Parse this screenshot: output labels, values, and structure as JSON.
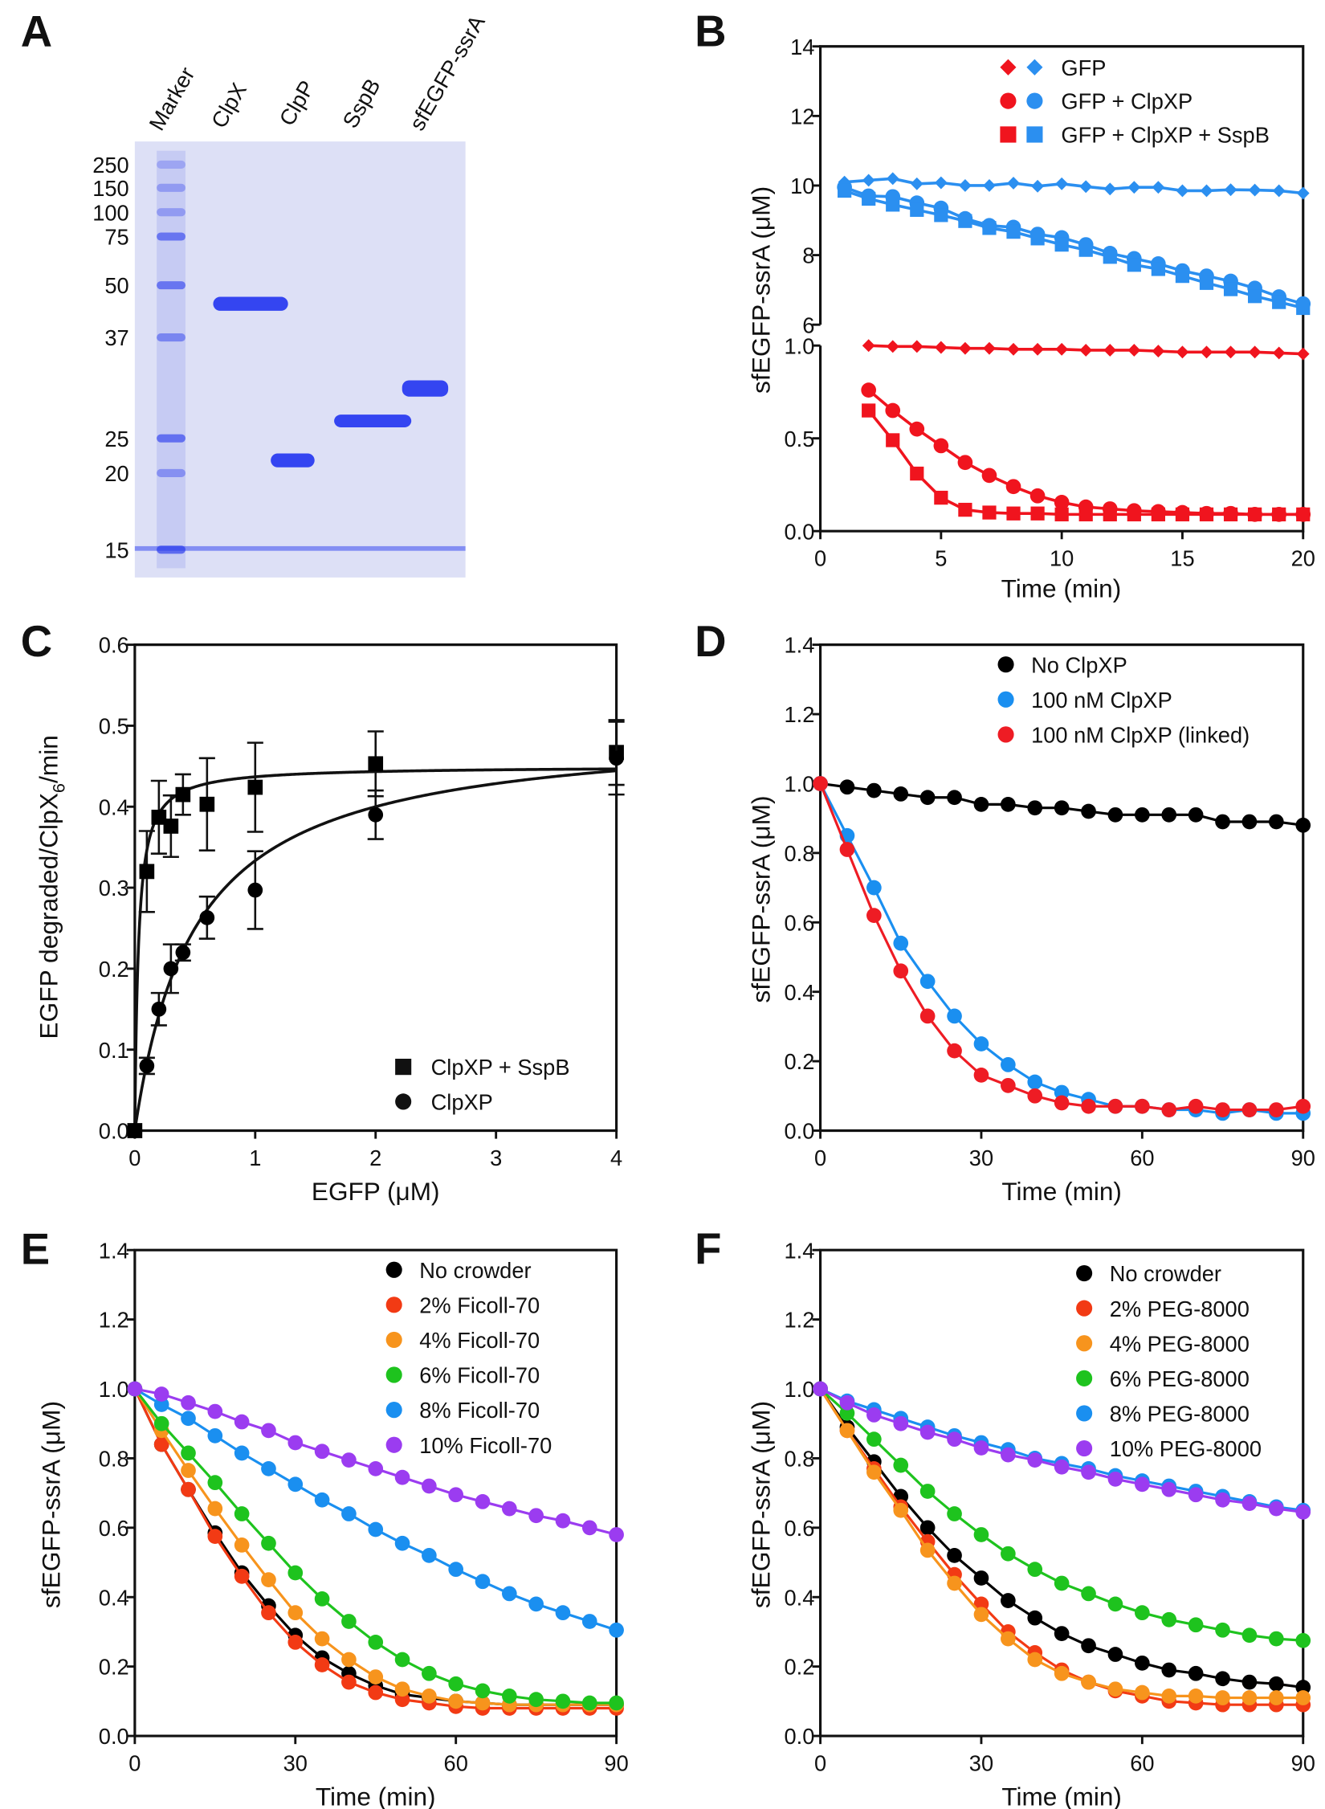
{
  "chart_data": [
    {
      "panel": "A",
      "type": "image",
      "lanes": [
        "Marker",
        "ClpX",
        "ClpP",
        "SspB",
        "sfEGFP-ssrA"
      ],
      "marker_labels": [
        "250",
        "150",
        "100",
        "75",
        "50",
        "37",
        "25",
        "20",
        "15"
      ],
      "colors": {
        "gel": "#dde0f6",
        "band": "#2a3cf0"
      }
    },
    {
      "panel": "B",
      "type": "line",
      "xlabel": "Time (min)",
      "ylabel": "sfEGFP-ssrA (μM)",
      "xlim": [
        0,
        20
      ],
      "ylim_upper": [
        6,
        14
      ],
      "ylim_lower": [
        0,
        1
      ],
      "xticks": [
        "0",
        "5",
        "10",
        "15",
        "20"
      ],
      "yticks_upper": [
        "6",
        "8",
        "10",
        "12",
        "14"
      ],
      "yticks_lower": [
        "0.0",
        "0.5",
        "1.0"
      ],
      "legend": [
        {
          "label": "GFP",
          "marker": "diamond"
        },
        {
          "label": "GFP + ClpXP",
          "marker": "circle"
        },
        {
          "label": "GFP + ClpXP + SspB",
          "marker": "square"
        }
      ],
      "series": [
        {
          "legend": 0,
          "color": "#2b8ff0",
          "segment": "upper",
          "marker": "diamond",
          "x": [
            1,
            2,
            3,
            4,
            5,
            6,
            7,
            8,
            9,
            10,
            11,
            12,
            13,
            14,
            15,
            16,
            17,
            18,
            19,
            20
          ],
          "y": [
            10.1,
            10.15,
            10.2,
            10.05,
            10.08,
            10.0,
            10.0,
            10.07,
            9.98,
            10.05,
            9.97,
            9.9,
            9.95,
            9.95,
            9.85,
            9.85,
            9.88,
            9.87,
            9.85,
            9.78
          ]
        },
        {
          "legend": 1,
          "color": "#2b8ff0",
          "segment": "upper",
          "marker": "circle",
          "x": [
            1,
            2,
            3,
            4,
            5,
            6,
            7,
            8,
            9,
            10,
            11,
            12,
            13,
            14,
            15,
            16,
            17,
            18,
            19,
            20
          ],
          "y": [
            9.95,
            9.7,
            9.68,
            9.5,
            9.35,
            9.05,
            8.85,
            8.8,
            8.6,
            8.5,
            8.3,
            8.05,
            7.9,
            7.75,
            7.55,
            7.4,
            7.25,
            7.05,
            6.8,
            6.6
          ]
        },
        {
          "legend": 2,
          "color": "#2b8ff0",
          "segment": "upper",
          "marker": "square",
          "x": [
            1,
            2,
            3,
            4,
            5,
            6,
            7,
            8,
            9,
            10,
            11,
            12,
            13,
            14,
            15,
            16,
            17,
            18,
            19,
            20
          ],
          "y": [
            9.85,
            9.62,
            9.45,
            9.3,
            9.15,
            8.98,
            8.78,
            8.67,
            8.48,
            8.3,
            8.15,
            7.95,
            7.72,
            7.6,
            7.4,
            7.2,
            7.02,
            6.82,
            6.65,
            6.48
          ]
        },
        {
          "legend": 0,
          "color": "#f0141e",
          "segment": "lower",
          "marker": "diamond",
          "x": [
            2,
            3,
            4,
            5,
            6,
            7,
            8,
            9,
            10,
            11,
            12,
            13,
            14,
            15,
            16,
            17,
            18,
            19,
            20
          ],
          "y": [
            1.0,
            0.995,
            0.995,
            0.99,
            0.985,
            0.985,
            0.98,
            0.98,
            0.98,
            0.975,
            0.975,
            0.975,
            0.97,
            0.965,
            0.965,
            0.965,
            0.965,
            0.96,
            0.955
          ]
        },
        {
          "legend": 1,
          "color": "#f0141e",
          "segment": "lower",
          "marker": "circle",
          "x": [
            2,
            3,
            4,
            5,
            6,
            7,
            8,
            9,
            10,
            11,
            12,
            13,
            14,
            15,
            16,
            17,
            18,
            19,
            20
          ],
          "y": [
            0.76,
            0.65,
            0.55,
            0.46,
            0.37,
            0.3,
            0.24,
            0.19,
            0.155,
            0.13,
            0.12,
            0.11,
            0.105,
            0.1,
            0.095,
            0.095,
            0.09,
            0.09,
            0.09
          ]
        },
        {
          "legend": 2,
          "color": "#f0141e",
          "segment": "lower",
          "marker": "square",
          "x": [
            2,
            3,
            4,
            5,
            6,
            7,
            8,
            9,
            10,
            11,
            12,
            13,
            14,
            15,
            16,
            17,
            18,
            19,
            20
          ],
          "y": [
            0.65,
            0.49,
            0.31,
            0.18,
            0.115,
            0.1,
            0.095,
            0.095,
            0.09,
            0.09,
            0.09,
            0.09,
            0.09,
            0.09,
            0.09,
            0.09,
            0.09,
            0.09,
            0.09
          ]
        }
      ]
    },
    {
      "panel": "C",
      "type": "scatter",
      "xlabel": "EGFP (μM)",
      "ylabel": "EGFP degraded/ClpX6/min",
      "ylabel_parts": [
        "EGFP degraded/ClpX",
        "6",
        "/min"
      ],
      "xlim": [
        0,
        4
      ],
      "ylim": [
        0,
        0.6
      ],
      "xticks": [
        "0",
        "1",
        "2",
        "3",
        "4"
      ],
      "yticks": [
        "0.0",
        "0.1",
        "0.2",
        "0.3",
        "0.4",
        "0.5",
        "0.6"
      ],
      "legend_position": "bottom-right",
      "series": [
        {
          "name": "ClpXP + SspB",
          "marker": "square",
          "color": "#000000",
          "x": [
            0,
            0.1,
            0.2,
            0.3,
            0.4,
            0.6,
            1,
            2,
            4
          ],
          "y": [
            0,
            0.32,
            0.387,
            0.376,
            0.415,
            0.403,
            0.424,
            0.453,
            0.467
          ],
          "error": [
            0,
            0.05,
            0.045,
            0.038,
            0.025,
            0.057,
            0.055,
            0.04,
            0.04
          ],
          "fit": "hyperbolic"
        },
        {
          "name": "ClpXP",
          "marker": "circle",
          "color": "#000000",
          "x": [
            0,
            0.1,
            0.2,
            0.3,
            0.4,
            0.6,
            1,
            2,
            4
          ],
          "y": [
            0,
            0.08,
            0.15,
            0.2,
            0.22,
            0.263,
            0.297,
            0.39,
            0.46
          ],
          "error": [
            0,
            0.01,
            0.02,
            0.03,
            0.01,
            0.026,
            0.048,
            0.03,
            0.045
          ],
          "fit": "hyperbolic"
        }
      ]
    },
    {
      "panel": "D",
      "type": "line",
      "xlabel": "Time (min)",
      "ylabel": "sfEGFP-ssrA (μM)",
      "xlim": [
        0,
        90
      ],
      "ylim": [
        0,
        1.4
      ],
      "xticks": [
        "0",
        "30",
        "60",
        "90"
      ],
      "yticks": [
        "0.0",
        "0.2",
        "0.4",
        "0.6",
        "0.8",
        "1.0",
        "1.2",
        "1.4"
      ],
      "legend_position": "top-right",
      "x": [
        0,
        5,
        10,
        15,
        20,
        25,
        30,
        35,
        40,
        45,
        50,
        55,
        60,
        65,
        70,
        75,
        80,
        85,
        90
      ],
      "series": [
        {
          "name": "No ClpXP",
          "color": "#000000",
          "y": [
            1.0,
            0.99,
            0.98,
            0.97,
            0.96,
            0.96,
            0.94,
            0.94,
            0.93,
            0.93,
            0.92,
            0.91,
            0.91,
            0.91,
            0.91,
            0.89,
            0.89,
            0.89,
            0.88
          ]
        },
        {
          "name": "100 nM ClpXP",
          "color": "#1a8ff0",
          "y": [
            1.0,
            0.85,
            0.7,
            0.54,
            0.43,
            0.33,
            0.25,
            0.19,
            0.14,
            0.11,
            0.09,
            0.07,
            0.07,
            0.06,
            0.06,
            0.05,
            0.06,
            0.05,
            0.05
          ]
        },
        {
          "name": "100 nM ClpXP (linked)",
          "color": "#ee1c24",
          "y": [
            1.0,
            0.81,
            0.62,
            0.46,
            0.33,
            0.23,
            0.16,
            0.13,
            0.1,
            0.08,
            0.07,
            0.07,
            0.07,
            0.06,
            0.07,
            0.06,
            0.06,
            0.06,
            0.07
          ]
        }
      ]
    },
    {
      "panel": "E",
      "type": "line",
      "xlabel": "Time (min)",
      "ylabel": "sfEGFP-ssrA (μM)",
      "xlim": [
        0,
        90
      ],
      "ylim": [
        0,
        1.4
      ],
      "xticks": [
        "0",
        "30",
        "60",
        "90"
      ],
      "yticks": [
        "0.0",
        "0.2",
        "0.4",
        "0.6",
        "0.8",
        "1.0",
        "1.2",
        "1.4"
      ],
      "legend_position": "top-right",
      "x": [
        0,
        5,
        10,
        15,
        20,
        25,
        30,
        35,
        40,
        45,
        50,
        55,
        60,
        65,
        70,
        75,
        80,
        85,
        90
      ],
      "series": [
        {
          "name": "No crowder",
          "color": "#000000",
          "y": [
            1.0,
            0.84,
            0.71,
            0.585,
            0.47,
            0.375,
            0.29,
            0.225,
            0.18,
            0.145,
            0.12,
            0.11,
            0.1,
            0.095,
            0.09,
            0.09,
            0.09,
            0.09,
            0.09
          ]
        },
        {
          "name": "2% Ficoll-70",
          "color": "#f23a14",
          "y": [
            1.0,
            0.84,
            0.71,
            0.575,
            0.46,
            0.355,
            0.27,
            0.205,
            0.155,
            0.125,
            0.105,
            0.095,
            0.085,
            0.08,
            0.08,
            0.08,
            0.08,
            0.08,
            0.08
          ]
        },
        {
          "name": "4% Ficoll-70",
          "color": "#f7941d",
          "y": [
            1.0,
            0.88,
            0.765,
            0.655,
            0.55,
            0.45,
            0.355,
            0.28,
            0.22,
            0.17,
            0.135,
            0.115,
            0.1,
            0.095,
            0.09,
            0.09,
            0.09,
            0.09,
            0.09
          ]
        },
        {
          "name": "6% Ficoll-70",
          "color": "#1ec31e",
          "y": [
            1.0,
            0.9,
            0.815,
            0.73,
            0.64,
            0.555,
            0.47,
            0.395,
            0.33,
            0.27,
            0.22,
            0.18,
            0.15,
            0.13,
            0.115,
            0.105,
            0.1,
            0.095,
            0.095
          ]
        },
        {
          "name": "8% Ficoll-70",
          "color": "#1a8ff0",
          "y": [
            1.0,
            0.955,
            0.915,
            0.865,
            0.815,
            0.77,
            0.725,
            0.68,
            0.64,
            0.595,
            0.555,
            0.52,
            0.48,
            0.445,
            0.41,
            0.38,
            0.355,
            0.33,
            0.305
          ]
        },
        {
          "name": "10% Ficoll-70",
          "color": "#9b3cf0",
          "y": [
            1.0,
            0.985,
            0.96,
            0.935,
            0.905,
            0.88,
            0.845,
            0.82,
            0.795,
            0.77,
            0.745,
            0.72,
            0.695,
            0.675,
            0.655,
            0.635,
            0.62,
            0.6,
            0.58
          ]
        }
      ]
    },
    {
      "panel": "F",
      "type": "line",
      "xlabel": "Time (min)",
      "ylabel": "sfEGFP-ssrA (μM)",
      "xlim": [
        0,
        90
      ],
      "ylim": [
        0,
        1.4
      ],
      "xticks": [
        "0",
        "30",
        "60",
        "90"
      ],
      "yticks": [
        "0.0",
        "0.2",
        "0.4",
        "0.6",
        "0.8",
        "1.0",
        "1.2",
        "1.4"
      ],
      "legend_position": "top-right",
      "x": [
        0,
        5,
        10,
        15,
        20,
        25,
        30,
        35,
        40,
        45,
        50,
        55,
        60,
        65,
        70,
        75,
        80,
        85,
        90
      ],
      "series": [
        {
          "name": "No crowder",
          "color": "#000000",
          "y": [
            1.0,
            0.89,
            0.79,
            0.69,
            0.6,
            0.52,
            0.455,
            0.39,
            0.34,
            0.295,
            0.26,
            0.235,
            0.21,
            0.19,
            0.18,
            0.165,
            0.155,
            0.15,
            0.14
          ]
        },
        {
          "name": "2% PEG-8000",
          "color": "#f23a14",
          "y": [
            1.0,
            0.88,
            0.77,
            0.66,
            0.56,
            0.465,
            0.38,
            0.3,
            0.24,
            0.19,
            0.155,
            0.13,
            0.115,
            0.1,
            0.095,
            0.09,
            0.09,
            0.09,
            0.09
          ]
        },
        {
          "name": "4% PEG-8000",
          "color": "#f7941d",
          "y": [
            1.0,
            0.88,
            0.76,
            0.65,
            0.535,
            0.44,
            0.35,
            0.28,
            0.22,
            0.18,
            0.155,
            0.135,
            0.125,
            0.115,
            0.115,
            0.11,
            0.11,
            0.11,
            0.11
          ]
        },
        {
          "name": "6% PEG-8000",
          "color": "#1ec31e",
          "y": [
            1.0,
            0.93,
            0.855,
            0.78,
            0.705,
            0.64,
            0.58,
            0.525,
            0.48,
            0.44,
            0.41,
            0.38,
            0.355,
            0.335,
            0.32,
            0.305,
            0.29,
            0.28,
            0.275
          ]
        },
        {
          "name": "8% PEG-8000",
          "color": "#1a8ff0",
          "y": [
            1.0,
            0.965,
            0.94,
            0.915,
            0.89,
            0.865,
            0.845,
            0.825,
            0.8,
            0.785,
            0.77,
            0.75,
            0.735,
            0.72,
            0.705,
            0.69,
            0.675,
            0.66,
            0.65
          ]
        },
        {
          "name": "10% PEG-8000",
          "color": "#9b3cf0",
          "y": [
            1.0,
            0.96,
            0.925,
            0.9,
            0.875,
            0.855,
            0.83,
            0.81,
            0.795,
            0.775,
            0.76,
            0.74,
            0.725,
            0.71,
            0.695,
            0.68,
            0.67,
            0.655,
            0.645
          ]
        }
      ]
    }
  ]
}
